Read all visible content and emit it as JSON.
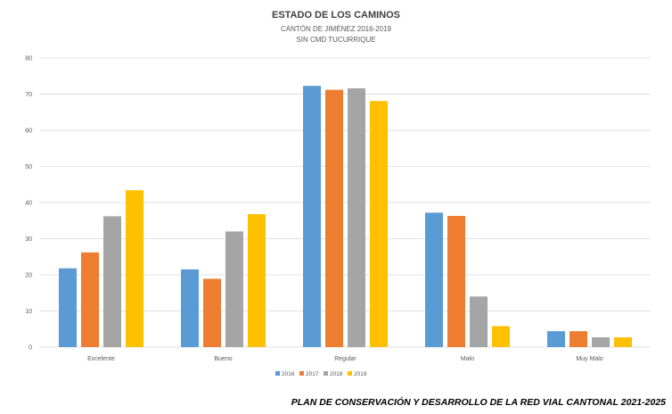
{
  "chart_data": {
    "type": "bar",
    "title": "ESTADO DE LOS CAMINOS",
    "subtitle_lines": [
      "CANTÓN DE JIMÉNEZ 2016-2019",
      "SIN CMD TUCURRIQUE"
    ],
    "categories": [
      "Excelente",
      "Bueno",
      "Regular",
      "Malo",
      "Muy Malo"
    ],
    "series": [
      {
        "name": "2016",
        "color": "#5b9bd5",
        "values": [
          21.8,
          21.5,
          72.3,
          37.2,
          4.4
        ]
      },
      {
        "name": "2017",
        "color": "#ed7d31",
        "values": [
          26.2,
          18.9,
          71.2,
          36.3,
          4.4
        ]
      },
      {
        "name": "2018",
        "color": "#a5a5a5",
        "values": [
          36.2,
          32.0,
          71.6,
          14.0,
          2.7
        ]
      },
      {
        "name": "2019",
        "color": "#ffc000",
        "values": [
          43.4,
          36.8,
          68.1,
          5.8,
          2.7
        ]
      }
    ],
    "ylim": [
      0,
      80
    ],
    "yticks": [
      0,
      10,
      20,
      30,
      40,
      50,
      60,
      70,
      80
    ],
    "grid": true,
    "legend_position": "bottom"
  },
  "footer": {
    "text": "PLAN DE CONSERVACIÓN Y DESARROLLO DE LA RED VIAL CANTONAL 2021-2025"
  }
}
